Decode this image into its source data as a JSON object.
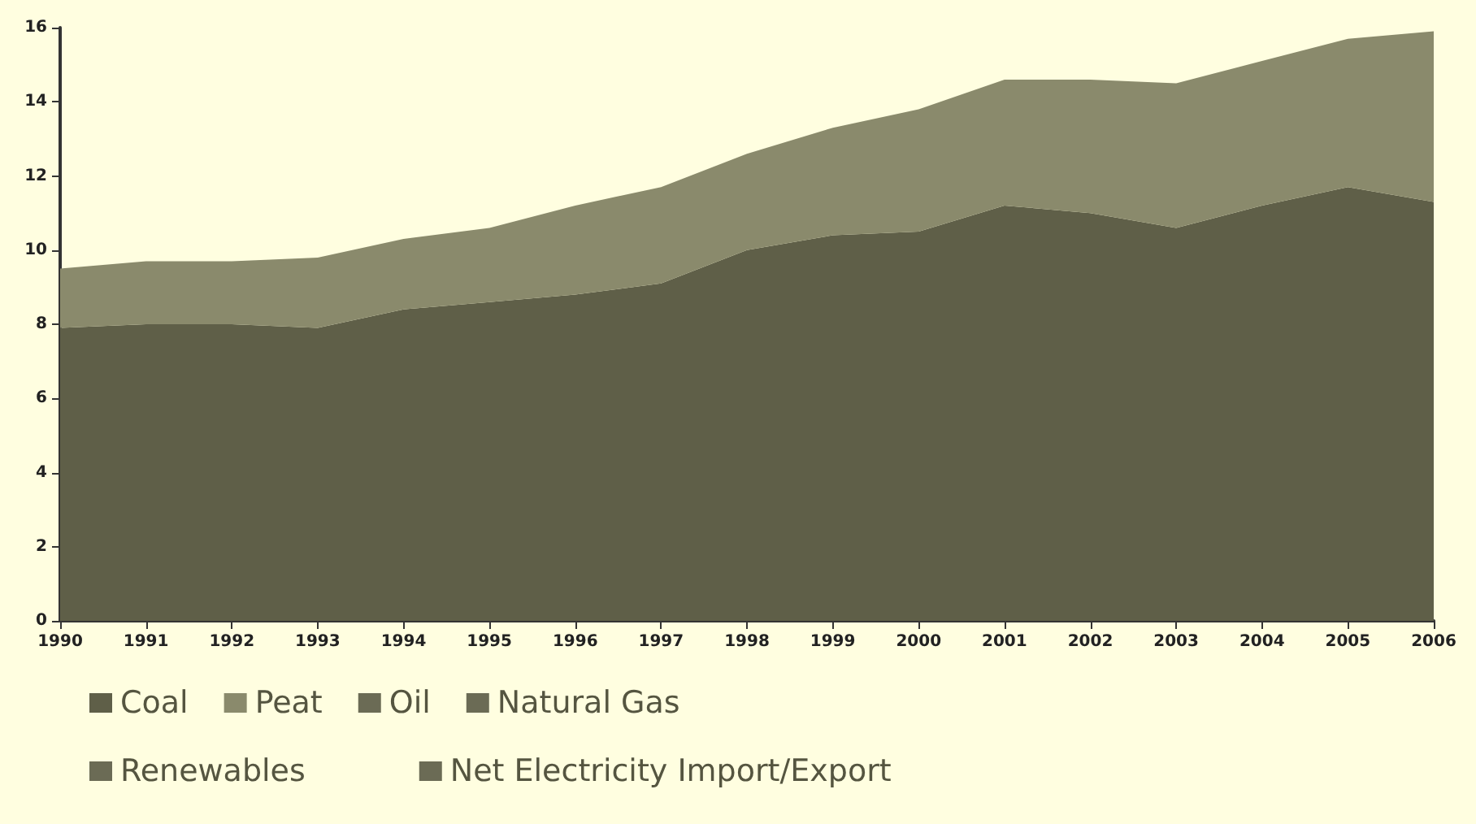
{
  "chart_data": {
    "type": "area",
    "stacked": true,
    "legend": "bottom",
    "grid": false,
    "marker": "none",
    "categories": [
      "1990",
      "1991",
      "1992",
      "1993",
      "1994",
      "1995",
      "1996",
      "1997",
      "1998",
      "1999",
      "2000",
      "2001",
      "2002",
      "2003",
      "2004",
      "2005",
      "2006"
    ],
    "ylim": [
      0,
      16
    ],
    "yticks": [
      0,
      2,
      4,
      6,
      8,
      10,
      12,
      14,
      16
    ],
    "series": [
      {
        "name": "Coal",
        "color": "#5f5f48",
        "values": [
          7.9,
          8.0,
          8.0,
          7.9,
          8.4,
          8.6,
          8.8,
          9.1,
          10.0,
          10.4,
          10.5,
          11.2,
          11.0,
          10.6,
          11.2,
          11.7,
          11.3
        ]
      },
      {
        "name": "Peat",
        "color": "#8a8a6c",
        "values": [
          1.6,
          1.7,
          1.7,
          1.9,
          1.9,
          2.0,
          2.4,
          2.6,
          2.6,
          2.9,
          3.3,
          3.4,
          3.6,
          3.9,
          3.9,
          4.0,
          4.6
        ]
      },
      {
        "name": "Oil",
        "color": "#6b6b55",
        "values": [
          null,
          null,
          null,
          null,
          null,
          null,
          null,
          null,
          null,
          null,
          null,
          null,
          null,
          null,
          null,
          null,
          null
        ]
      },
      {
        "name": "Natural Gas",
        "color": "#6b6b55",
        "values": [
          null,
          null,
          null,
          null,
          null,
          null,
          null,
          null,
          null,
          null,
          null,
          null,
          null,
          null,
          null,
          null,
          null
        ]
      },
      {
        "name": "Renewables",
        "color": "#6b6b55",
        "values": [
          null,
          null,
          null,
          null,
          null,
          null,
          null,
          null,
          null,
          null,
          null,
          null,
          null,
          null,
          null,
          null,
          null
        ]
      },
      {
        "name": "Net Electricity Import/Export",
        "color": "#6b6b55",
        "values": [
          null,
          null,
          null,
          null,
          null,
          null,
          null,
          null,
          null,
          null,
          null,
          null,
          null,
          null,
          null,
          null,
          null
        ]
      }
    ]
  }
}
